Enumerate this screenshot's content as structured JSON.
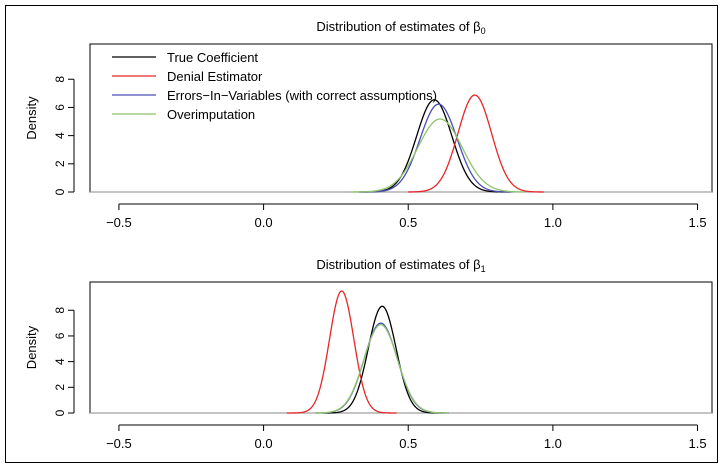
{
  "chart_data": [
    {
      "type": "line",
      "title_prefix": "Distribution of estimates of β",
      "title_subscript": "0",
      "title": "Distribution of estimates of β0",
      "xlabel": "",
      "ylabel": "Density",
      "xlim": [
        -0.6,
        1.55
      ],
      "ylim": [
        0,
        10.5
      ],
      "x_ticks": [
        -0.5,
        0.0,
        0.5,
        1.0,
        1.5
      ],
      "x_tick_labels": [
        "−0.5",
        "0.0",
        "0.5",
        "1.0",
        "1.5"
      ],
      "y_ticks": [
        0,
        2,
        4,
        6,
        8
      ],
      "y_tick_labels": [
        "0",
        "2",
        "4",
        "6",
        "8"
      ],
      "grid": false,
      "legend_position": "top-left",
      "legend_names": [
        "True Coefficient",
        "Denial Estimator",
        "Errors−In−Variables (with correct assumptions)",
        "Overimputation"
      ],
      "series": [
        {
          "name": "True Coefficient",
          "color": "#000000",
          "mean": 0.59,
          "sd": 0.061,
          "x_range": [
            0.33,
            0.85
          ]
        },
        {
          "name": "Denial Estimator",
          "color": "#e8262a",
          "mean": 0.73,
          "sd": 0.058,
          "x_range": [
            0.5,
            0.97
          ]
        },
        {
          "name": "Errors−In−Variables (with correct assumptions)",
          "color": "#4a4fb5",
          "mean": 0.605,
          "sd": 0.064,
          "x_range": [
            0.33,
            0.86
          ]
        },
        {
          "name": "Overimputation",
          "color": "#8dc46b",
          "mean": 0.61,
          "sd": 0.077,
          "x_range": [
            0.3,
            0.9
          ]
        }
      ],
      "baseline_color": "#a0a0a0"
    },
    {
      "type": "line",
      "title_prefix": "Distribution of estimates of β",
      "title_subscript": "1",
      "title": "Distribution of estimates of β1",
      "xlabel": "",
      "ylabel": "Density",
      "xlim": [
        -0.6,
        1.55
      ],
      "ylim": [
        0,
        10.2
      ],
      "x_ticks": [
        -0.5,
        0.0,
        0.5,
        1.0,
        1.5
      ],
      "x_tick_labels": [
        "−0.5",
        "0.0",
        "0.5",
        "1.0",
        "1.5"
      ],
      "y_ticks": [
        0,
        2,
        4,
        6,
        8
      ],
      "y_tick_labels": [
        "0",
        "2",
        "4",
        "6",
        "8"
      ],
      "grid": false,
      "series": [
        {
          "name": "True Coefficient",
          "color": "#000000",
          "mean": 0.41,
          "sd": 0.048,
          "x_range": [
            0.2,
            0.62
          ]
        },
        {
          "name": "Denial Estimator",
          "color": "#e8262a",
          "mean": 0.27,
          "sd": 0.042,
          "x_range": [
            0.08,
            0.46
          ]
        },
        {
          "name": "Errors−In−Variables (with correct assumptions)",
          "color": "#4a4fb5",
          "mean": 0.405,
          "sd": 0.057,
          "x_range": [
            0.18,
            0.64
          ]
        },
        {
          "name": "Overimputation",
          "color": "#8dc46b",
          "mean": 0.405,
          "sd": 0.058,
          "x_range": [
            0.18,
            0.64
          ]
        }
      ],
      "baseline_color": "#a0a0a0"
    }
  ]
}
